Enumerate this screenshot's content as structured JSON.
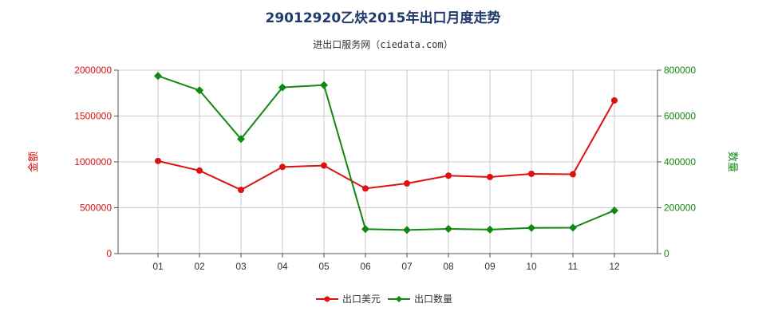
{
  "header": {
    "title": "29012920乙炔2015年出口月度走势",
    "subtitle": "进出口服务网（ciedata.com）"
  },
  "colors": {
    "left": "#dd1111",
    "right": "#118811",
    "grid": "#cccccc",
    "axis": "#555555"
  },
  "chart_data": {
    "type": "line",
    "title": "29012920乙炔2015年出口月度走势",
    "categories": [
      "01",
      "02",
      "03",
      "04",
      "05",
      "06",
      "07",
      "08",
      "09",
      "10",
      "11",
      "12"
    ],
    "y_left": {
      "label": "金额",
      "min": 0,
      "max": 2000000,
      "ticks": [
        "0",
        "500000",
        "1000000",
        "1500000",
        "2000000"
      ]
    },
    "y_right": {
      "label": "数量",
      "min": 0,
      "max": 800000,
      "ticks": [
        "0",
        "200000",
        "400000",
        "600000",
        "800000"
      ]
    },
    "grid": true,
    "legend_position": "bottom-center",
    "series": [
      {
        "name": "出口美元",
        "axis": "left",
        "color": "#dd1111",
        "marker": "circle",
        "values": [
          1010000,
          905000,
          695000,
          945000,
          960000,
          710000,
          765000,
          850000,
          835000,
          870000,
          865000,
          1670000
        ]
      },
      {
        "name": "出口数量",
        "axis": "right",
        "color": "#118811",
        "marker": "diamond",
        "values": [
          775000,
          712000,
          500000,
          725000,
          735000,
          107000,
          103000,
          108000,
          105000,
          112000,
          113000,
          188000
        ]
      }
    ]
  }
}
